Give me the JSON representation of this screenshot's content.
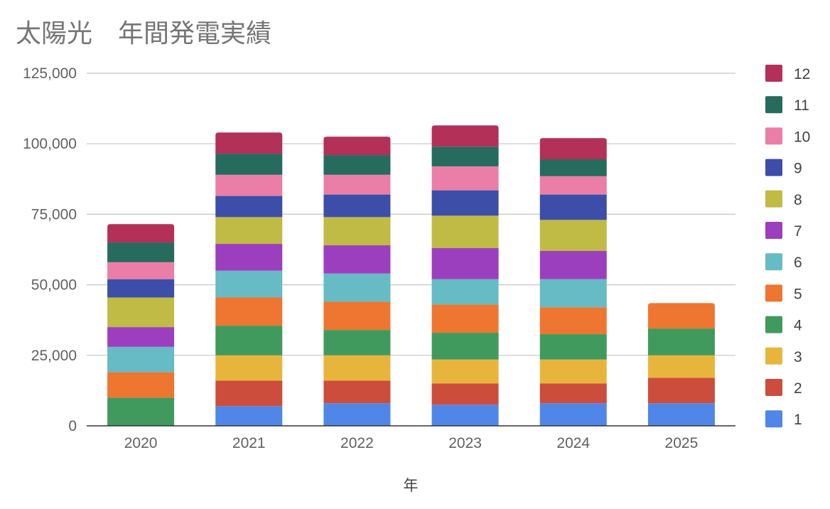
{
  "chart_data": {
    "type": "bar",
    "stacked": true,
    "title": "太陽光　年間発電実績",
    "xlabel": "年",
    "ylabel": "",
    "ylim": [
      0,
      125000
    ],
    "yticks": [
      0,
      25000,
      50000,
      75000,
      100000,
      125000
    ],
    "ytick_labels": [
      "0",
      "25,000",
      "50,000",
      "75,000",
      "100,000",
      "125,000"
    ],
    "grid": true,
    "legend_position": "right",
    "categories": [
      "2020",
      "2021",
      "2022",
      "2023",
      "2024",
      "2025"
    ],
    "series": [
      {
        "name": "1",
        "color": "#4f86e8",
        "values": [
          0,
          7000,
          8000,
          7500,
          8000,
          8000
        ]
      },
      {
        "name": "2",
        "color": "#cc4d3c",
        "values": [
          0,
          9000,
          8000,
          7500,
          7000,
          9000
        ]
      },
      {
        "name": "3",
        "color": "#e8b53c",
        "values": [
          0,
          9000,
          9000,
          8500,
          8500,
          8000
        ]
      },
      {
        "name": "4",
        "color": "#419a5d",
        "values": [
          10000,
          10500,
          9000,
          9500,
          9000,
          9500
        ]
      },
      {
        "name": "5",
        "color": "#ee7630",
        "values": [
          9000,
          10000,
          10000,
          10000,
          9500,
          9000
        ]
      },
      {
        "name": "6",
        "color": "#66bbc4",
        "values": [
          9000,
          9500,
          10000,
          9000,
          10000,
          0
        ]
      },
      {
        "name": "7",
        "color": "#9c3fbf",
        "values": [
          7000,
          9500,
          10000,
          11000,
          10000,
          0
        ]
      },
      {
        "name": "8",
        "color": "#bfbb44",
        "values": [
          10500,
          9500,
          10000,
          11500,
          11000,
          0
        ]
      },
      {
        "name": "9",
        "color": "#3d4ea8",
        "values": [
          6500,
          7500,
          8000,
          9000,
          9000,
          0
        ]
      },
      {
        "name": "10",
        "color": "#ea7ea6",
        "values": [
          6000,
          7500,
          7000,
          8500,
          6500,
          0
        ]
      },
      {
        "name": "11",
        "color": "#276a5e",
        "values": [
          7000,
          7500,
          7000,
          7000,
          6000,
          0
        ]
      },
      {
        "name": "12",
        "color": "#b33059",
        "values": [
          6500,
          7500,
          6500,
          7500,
          7500,
          0
        ]
      }
    ]
  }
}
